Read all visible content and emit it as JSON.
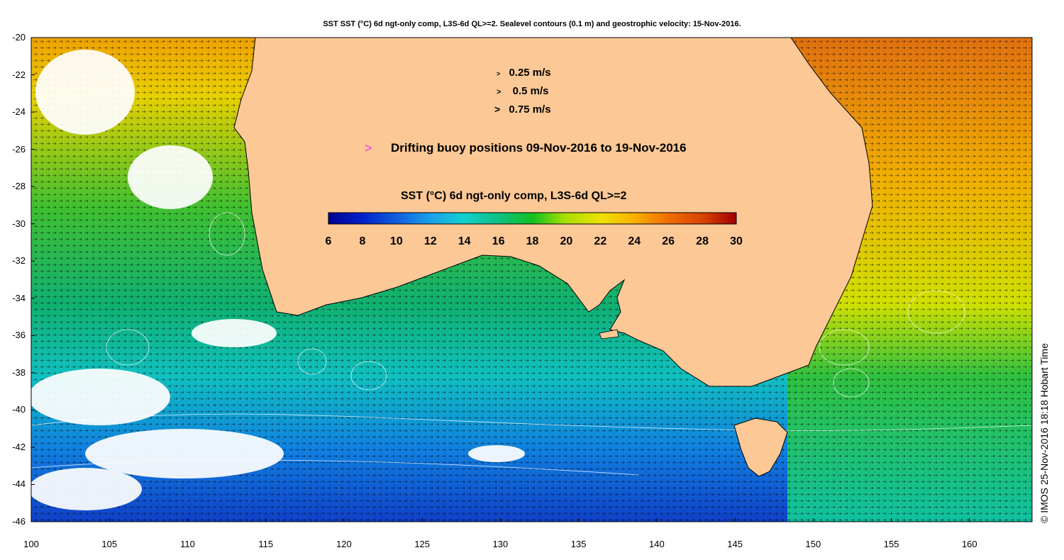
{
  "title": "SST SST (°C) 6d ngt-only comp, L3S-6d QL>=2. Sealevel contours (0.1 m) and geostrophic velocity: 15-Nov-2016.",
  "side_label": "© IMOS 25-Nov-2016 18:18 Hobart Time",
  "axes": {
    "lat_ticks": [
      "-20",
      "-22",
      "-24",
      "-26",
      "-28",
      "-30",
      "-32",
      "-34",
      "-36",
      "-38",
      "-40",
      "-42",
      "-44",
      "-46"
    ],
    "lon_ticks": [
      "100",
      "105",
      "110",
      "115",
      "120",
      "125",
      "130",
      "135",
      "140",
      "145",
      "150",
      "155",
      "160"
    ],
    "lat_range": [
      -46,
      -20
    ],
    "lon_range": [
      100,
      164
    ]
  },
  "velocity_legend": [
    {
      "label": "0.25 m/s",
      "glyph": ">"
    },
    {
      "label": "0.5 m/s",
      "glyph": ">"
    },
    {
      "label": "0.75 m/s",
      "glyph": ">"
    }
  ],
  "buoy_legend": {
    "glyph": ">",
    "label": "Drifting buoy positions 09-Nov-2016 to 19-Nov-2016",
    "color": "#e040e0"
  },
  "colorbar": {
    "title": "SST (°C) 6d ngt-only comp, L3S-6d QL>=2",
    "ticks": [
      "6",
      "8",
      "10",
      "12",
      "14",
      "16",
      "18",
      "20",
      "22",
      "24",
      "26",
      "28",
      "30"
    ],
    "range": [
      6,
      30
    ],
    "colors": [
      "#00008f",
      "#0020c8",
      "#1060e0",
      "#1aa0e8",
      "#10d0d0",
      "#10c080",
      "#10c020",
      "#a8e000",
      "#f0e000",
      "#f8b000",
      "#f07000",
      "#d84000",
      "#a00000"
    ]
  },
  "land_color": "#fcc896"
}
